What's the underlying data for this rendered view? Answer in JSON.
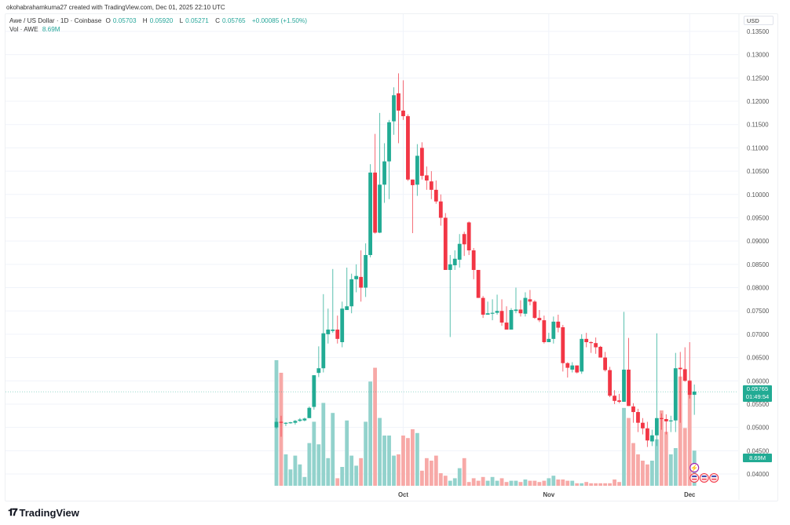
{
  "credit": "okohabrahamkuma27 created with TradingView.com, Dec 01, 2025 22:10 UTC",
  "legend": {
    "symbol": "Awe / US Dollar · 1D · Coinbase",
    "open_label": "O",
    "open": "0.05703",
    "high_label": "H",
    "high": "0.05920",
    "low_label": "L",
    "low": "0.05271",
    "close_label": "C",
    "close": "0.05765",
    "change": "+0.00085 (+1.50%)",
    "vol_label": "Vol · AWE",
    "vol_value": "8.69M"
  },
  "currency": "USD",
  "last_price_tag": {
    "price": "0.05765",
    "countdown": "01:49:54"
  },
  "volume_tag": "8.69M",
  "brand": "TradingView",
  "colors": {
    "up": "#22ab94",
    "down": "#f23645",
    "vol_up": "#92d2cc",
    "vol_down": "#f7a9a7",
    "grid": "#f0f3fa"
  },
  "chart_data": {
    "type": "candlestick",
    "title": "Awe / US Dollar · 1D · Coinbase",
    "ylabel": "USD",
    "ylim": [
      0.0375,
      0.137
    ],
    "y_ticks": [
      "0.13500",
      "0.13000",
      "0.12500",
      "0.12000",
      "0.11500",
      "0.11000",
      "0.10500",
      "0.10000",
      "0.09500",
      "0.09000",
      "0.08500",
      "0.08000",
      "0.07500",
      "0.07000",
      "0.06500",
      "0.06000",
      "0.05500",
      "0.05000",
      "0.04500",
      "0.04000"
    ],
    "x_ticks": [
      {
        "label": "Oct",
        "index": 27
      },
      {
        "label": "Nov",
        "index": 58
      },
      {
        "label": "Dec",
        "index": 88
      }
    ],
    "grid": true,
    "candles": [
      [
        0.05,
        0.052,
        0.0497,
        0.0512,
        1.0
      ],
      [
        0.0512,
        0.0525,
        0.048,
        0.051,
        0.9
      ],
      [
        0.0508,
        0.0511,
        0.0503,
        0.051,
        0.25
      ],
      [
        0.0509,
        0.0512,
        0.0508,
        0.0511,
        0.13
      ],
      [
        0.051,
        0.0516,
        0.0506,
        0.0514,
        0.24
      ],
      [
        0.0514,
        0.052,
        0.0512,
        0.0517,
        0.17
      ],
      [
        0.0515,
        0.0521,
        0.0513,
        0.0519,
        0.07
      ],
      [
        0.052,
        0.0545,
        0.052,
        0.0542,
        0.34
      ],
      [
        0.0544,
        0.0589,
        0.0538,
        0.0612,
        0.51
      ],
      [
        0.0617,
        0.0674,
        0.0608,
        0.0627,
        0.33
      ],
      [
        0.0627,
        0.0786,
        0.0618,
        0.0702,
        0.66
      ],
      [
        0.07,
        0.0755,
        0.068,
        0.071,
        0.22
      ],
      [
        0.0707,
        0.084,
        0.0703,
        0.071,
        0.58
      ],
      [
        0.071,
        0.074,
        0.068,
        0.069,
        0.06
      ],
      [
        0.0683,
        0.077,
        0.0672,
        0.0755,
        0.15
      ],
      [
        0.0752,
        0.0843,
        0.0752,
        0.076,
        0.52
      ],
      [
        0.076,
        0.083,
        0.0745,
        0.0818,
        0.24
      ],
      [
        0.0818,
        0.085,
        0.079,
        0.0825,
        0.16
      ],
      [
        0.0823,
        0.088,
        0.077,
        0.08,
        0.22
      ],
      [
        0.08,
        0.0895,
        0.078,
        0.087,
        0.51
      ],
      [
        0.087,
        0.1065,
        0.0865,
        0.1047,
        0.83
      ],
      [
        0.1047,
        0.113,
        0.0916,
        0.0918,
        0.94
      ],
      [
        0.0918,
        0.1175,
        0.0917,
        0.1021,
        0.54
      ],
      [
        0.1021,
        0.111,
        0.0982,
        0.1071,
        0.4
      ],
      [
        0.1071,
        0.116,
        0.099,
        0.1155,
        0.4
      ],
      [
        0.1157,
        0.123,
        0.1128,
        0.1213,
        0.24
      ],
      [
        0.1217,
        0.126,
        0.111,
        0.118,
        0.25
      ],
      [
        0.118,
        0.1245,
        0.116,
        0.1168,
        0.4
      ],
      [
        0.1168,
        0.1172,
        0.1029,
        0.1032,
        0.38
      ],
      [
        0.1032,
        0.103,
        0.0917,
        0.102,
        0.45
      ],
      [
        0.1021,
        0.1108,
        0.0997,
        0.1083,
        0.42
      ],
      [
        0.11,
        0.1112,
        0.1032,
        0.104,
        0.12
      ],
      [
        0.1041,
        0.106,
        0.101,
        0.103,
        0.22
      ],
      [
        0.1028,
        0.105,
        0.099,
        0.101,
        0.2
      ],
      [
        0.101,
        0.103,
        0.098,
        0.0985,
        0.24
      ],
      [
        0.0985,
        0.1,
        0.0933,
        0.095,
        0.1
      ],
      [
        0.095,
        0.096,
        0.084,
        0.0838,
        0.08
      ],
      [
        0.0838,
        0.087,
        0.0694,
        0.085,
        0.04
      ],
      [
        0.0848,
        0.088,
        0.0838,
        0.0862,
        0.06
      ],
      [
        0.086,
        0.0915,
        0.0843,
        0.0894,
        0.14
      ],
      [
        0.0915,
        0.092,
        0.0868,
        0.0893,
        0.22
      ],
      [
        0.094,
        0.0942,
        0.087,
        0.088,
        0.03
      ],
      [
        0.088,
        0.0885,
        0.0818,
        0.0838,
        0.06
      ],
      [
        0.0838,
        0.082,
        0.0781,
        0.0778,
        0.04
      ],
      [
        0.0778,
        0.0782,
        0.0735,
        0.0742,
        0.07
      ],
      [
        0.0742,
        0.077,
        0.0742,
        0.0745,
        0.04
      ],
      [
        0.0745,
        0.0775,
        0.073,
        0.0746,
        0.07
      ],
      [
        0.0746,
        0.0785,
        0.0742,
        0.075,
        0.04
      ],
      [
        0.075,
        0.0775,
        0.0718,
        0.0725,
        0.06
      ],
      [
        0.0725,
        0.076,
        0.0712,
        0.071,
        0.03
      ],
      [
        0.071,
        0.0756,
        0.071,
        0.0752,
        0.04
      ],
      [
        0.075,
        0.08,
        0.0745,
        0.0753,
        0.04
      ],
      [
        0.0753,
        0.0773,
        0.0738,
        0.0745,
        0.03
      ],
      [
        0.0744,
        0.079,
        0.0738,
        0.0778,
        0.05
      ],
      [
        0.0775,
        0.0795,
        0.0762,
        0.077,
        0.04
      ],
      [
        0.077,
        0.0773,
        0.0733,
        0.0735,
        0.04
      ],
      [
        0.0735,
        0.0752,
        0.0726,
        0.073,
        0.03
      ],
      [
        0.073,
        0.074,
        0.068,
        0.0683,
        0.04
      ],
      [
        0.0683,
        0.0703,
        0.0685,
        0.069,
        0.06
      ],
      [
        0.069,
        0.0738,
        0.068,
        0.0727,
        0.08
      ],
      [
        0.0727,
        0.0742,
        0.0704,
        0.0714,
        0.05
      ],
      [
        0.0715,
        0.072,
        0.062,
        0.0638,
        0.05
      ],
      [
        0.0638,
        0.064,
        0.0607,
        0.0628,
        0.04
      ],
      [
        0.0624,
        0.064,
        0.0618,
        0.0633,
        0.04
      ],
      [
        0.0633,
        0.0633,
        0.0616,
        0.0618,
        0.02
      ],
      [
        0.062,
        0.07,
        0.0615,
        0.069,
        0.02
      ],
      [
        0.069,
        0.0703,
        0.0672,
        0.0683,
        0.03
      ],
      [
        0.0683,
        0.0685,
        0.066,
        0.0681,
        0.02
      ],
      [
        0.0681,
        0.0693,
        0.0658,
        0.0672,
        0.02
      ],
      [
        0.0673,
        0.0675,
        0.065,
        0.065,
        0.02
      ],
      [
        0.065,
        0.0662,
        0.062,
        0.0623,
        0.02
      ],
      [
        0.0623,
        0.063,
        0.0565,
        0.0568,
        0.02
      ],
      [
        0.0568,
        0.058,
        0.055,
        0.0557,
        0.05
      ],
      [
        0.0558,
        0.0572,
        0.0552,
        0.0555,
        0.03
      ],
      [
        0.0555,
        0.0748,
        0.0555,
        0.0624,
        0.62
      ],
      [
        0.0624,
        0.0692,
        0.055,
        0.0546,
        0.54
      ],
      [
        0.0545,
        0.0552,
        0.051,
        0.0533,
        0.34
      ],
      [
        0.0533,
        0.054,
        0.049,
        0.051,
        0.25
      ],
      [
        0.051,
        0.052,
        0.0485,
        0.0498,
        0.2
      ],
      [
        0.0498,
        0.0512,
        0.0458,
        0.0472,
        0.17
      ],
      [
        0.047,
        0.0495,
        0.046,
        0.0483,
        0.2
      ],
      [
        0.0483,
        0.0702,
        0.046,
        0.052,
        0.37
      ],
      [
        0.052,
        0.053,
        0.0495,
        0.0518,
        0.6
      ],
      [
        0.0518,
        0.0528,
        0.0485,
        0.0513,
        0.43
      ],
      [
        0.0513,
        0.0525,
        0.049,
        0.0515,
        0.25
      ],
      [
        0.0515,
        0.066,
        0.049,
        0.0627,
        0.3
      ],
      [
        0.0628,
        0.0662,
        0.051,
        0.0625,
        0.87
      ],
      [
        0.0625,
        0.0672,
        0.0598,
        0.06,
        0.46
      ],
      [
        0.06,
        0.0683,
        0.0562,
        0.057,
        0.84
      ],
      [
        0.057,
        0.0592,
        0.0527,
        0.0577,
        0.28
      ]
    ]
  }
}
